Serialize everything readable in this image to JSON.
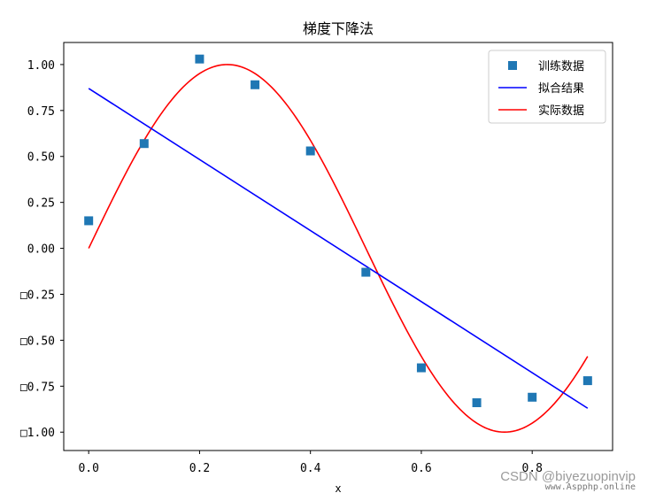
{
  "chart_data": {
    "type": "line",
    "title": "梯度下降法",
    "xlabel": "x",
    "ylabel": "",
    "xlim": [
      -0.045,
      0.945
    ],
    "ylim": [
      -1.1,
      1.12
    ],
    "grid": false,
    "legend_position": "top-right",
    "x_ticks": [
      0.0,
      0.2,
      0.4,
      0.6,
      0.8
    ],
    "x_tick_labels": [
      "0.0",
      "0.2",
      "0.4",
      "0.6",
      "0.8"
    ],
    "y_ticks": [
      1.0,
      0.75,
      0.5,
      0.25,
      0.0,
      -0.25,
      -0.5,
      -0.75,
      -1.0
    ],
    "y_tick_labels": [
      "1.00",
      "0.75",
      "0.50",
      "0.25",
      "0.00",
      "□0.25",
      "□0.50",
      "□0.75",
      "□1.00"
    ],
    "series": [
      {
        "name": "训练数据",
        "kind": "scatter",
        "marker": "square",
        "color": "#1f77b4",
        "x": [
          0.0,
          0.1,
          0.2,
          0.3,
          0.4,
          0.5,
          0.6,
          0.7,
          0.8,
          0.9
        ],
        "y": [
          0.15,
          0.57,
          1.03,
          0.89,
          0.53,
          -0.13,
          -0.65,
          -0.84,
          -0.81,
          -0.72
        ]
      },
      {
        "name": "拟合结果",
        "kind": "line",
        "color": "#0000ff",
        "x": [
          0.0,
          0.9
        ],
        "y": [
          0.87,
          -0.87
        ]
      },
      {
        "name": "实际数据",
        "kind": "function",
        "function": "sin(2*pi*x)",
        "color": "#ff0000",
        "x_range": [
          0.0,
          0.9
        ]
      }
    ]
  },
  "watermark": {
    "line1": "CSDN @biyezuopinvip",
    "line2": "www.Aspphp.online"
  }
}
